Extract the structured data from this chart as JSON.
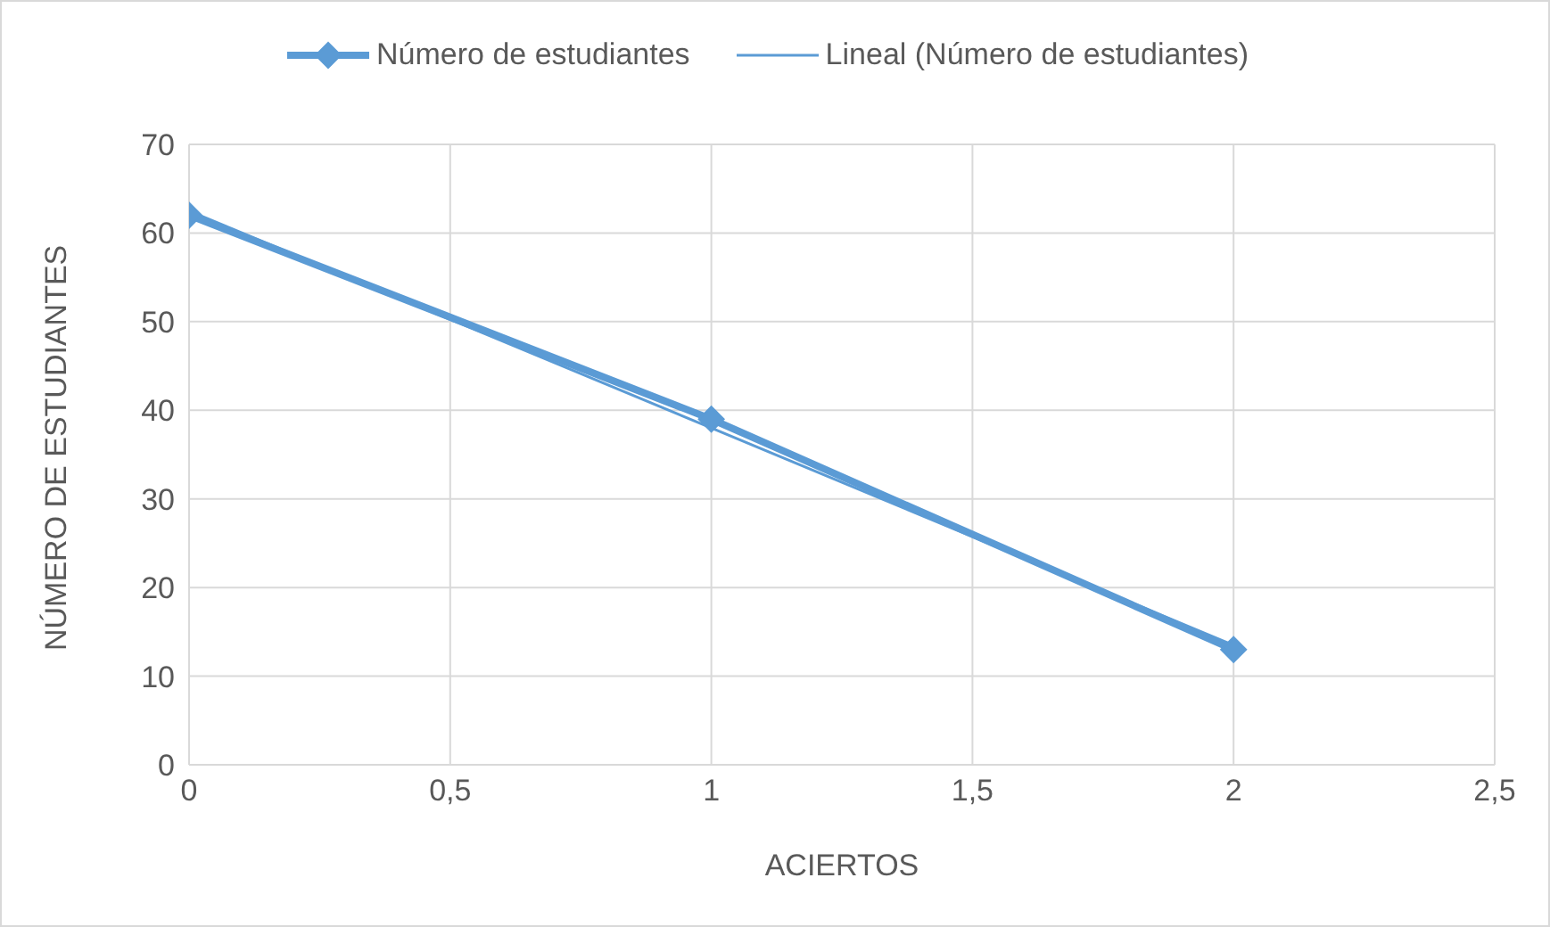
{
  "chart_data": {
    "type": "line",
    "xlabel": "ACIERTOS",
    "ylabel": "NÚMERO DE ESTUDIANTES",
    "series": [
      {
        "name": "Número de estudiantes",
        "color": "#5b9bd5",
        "x": [
          0,
          1,
          2
        ],
        "values": [
          62,
          39,
          13
        ],
        "marker": "diamond"
      },
      {
        "name": "Lineal (Número de estudiantes)",
        "color": "#5b9bd5",
        "x": [
          0,
          1,
          2
        ],
        "values": [
          62.5,
          38,
          13.5
        ],
        "marker": "none"
      }
    ],
    "xlim": [
      0,
      2.5
    ],
    "xticks": [
      0,
      {
        "value": 0.5,
        "label": "0,5"
      },
      1,
      {
        "value": 1.5,
        "label": "1,5"
      },
      2,
      {
        "value": 2.5,
        "label": "2,5"
      }
    ],
    "ylim": [
      0,
      70
    ],
    "yticks": [
      0,
      10,
      20,
      30,
      40,
      50,
      60,
      70
    ],
    "grid": true,
    "legend": "top",
    "line_style": "solid"
  }
}
